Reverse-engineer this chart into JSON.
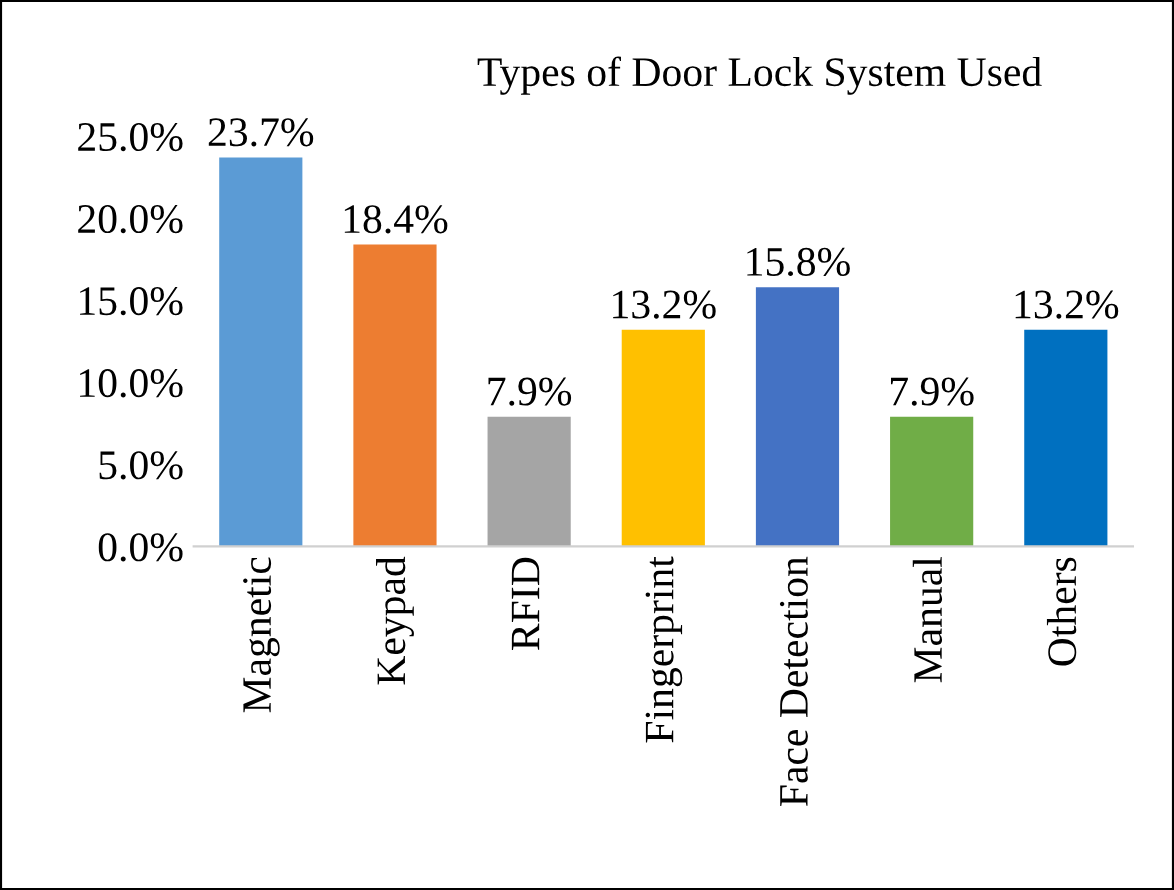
{
  "chart_data": {
    "type": "bar",
    "title": "Types of Door Lock System Used",
    "categories": [
      "Magnetic",
      "Keypad",
      "RFID",
      "Fingerprint",
      "Face Detection",
      "Manual",
      "Others"
    ],
    "values": [
      23.7,
      18.4,
      7.9,
      13.2,
      15.8,
      7.9,
      13.2
    ],
    "colors": [
      "#5b9bd5",
      "#ed7d31",
      "#a5a5a5",
      "#ffc000",
      "#4472c4",
      "#70ad47",
      "#0070c0"
    ],
    "value_labels": [
      "23.7%",
      "18.4%",
      "7.9%",
      "13.2%",
      "15.8%",
      "7.9%",
      "13.2%"
    ],
    "ylim": [
      0,
      25
    ],
    "yticks": [
      {
        "value": 0,
        "label": "0.0%"
      },
      {
        "value": 5,
        "label": "5.0%"
      },
      {
        "value": 10,
        "label": "10.0%"
      },
      {
        "value": 15,
        "label": "15.0%"
      },
      {
        "value": 20,
        "label": "20.0%"
      },
      {
        "value": 25,
        "label": "25.0%"
      }
    ],
    "grid": false
  }
}
